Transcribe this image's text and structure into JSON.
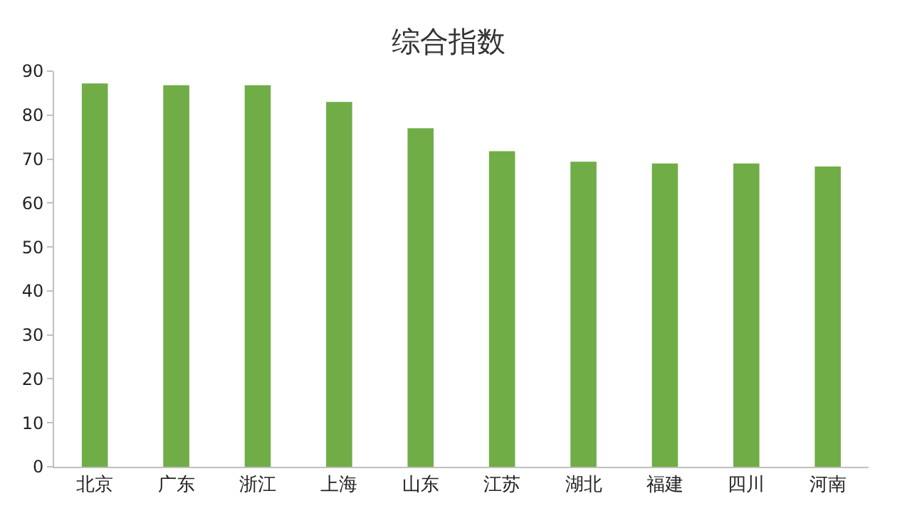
{
  "chart_data": {
    "type": "bar",
    "title": "综合指数",
    "categories": [
      "北京",
      "广东",
      "浙江",
      "上海",
      "山东",
      "江苏",
      "湖北",
      "福建",
      "四川",
      "河南"
    ],
    "values": [
      87.2,
      86.8,
      86.8,
      83,
      77,
      71.8,
      69.4,
      69,
      69,
      68.3
    ],
    "color": "#70ad47",
    "ylim": [
      0,
      90
    ],
    "yticks": [
      0,
      10,
      20,
      30,
      40,
      50,
      60,
      70,
      80,
      90
    ],
    "grid": false
  }
}
